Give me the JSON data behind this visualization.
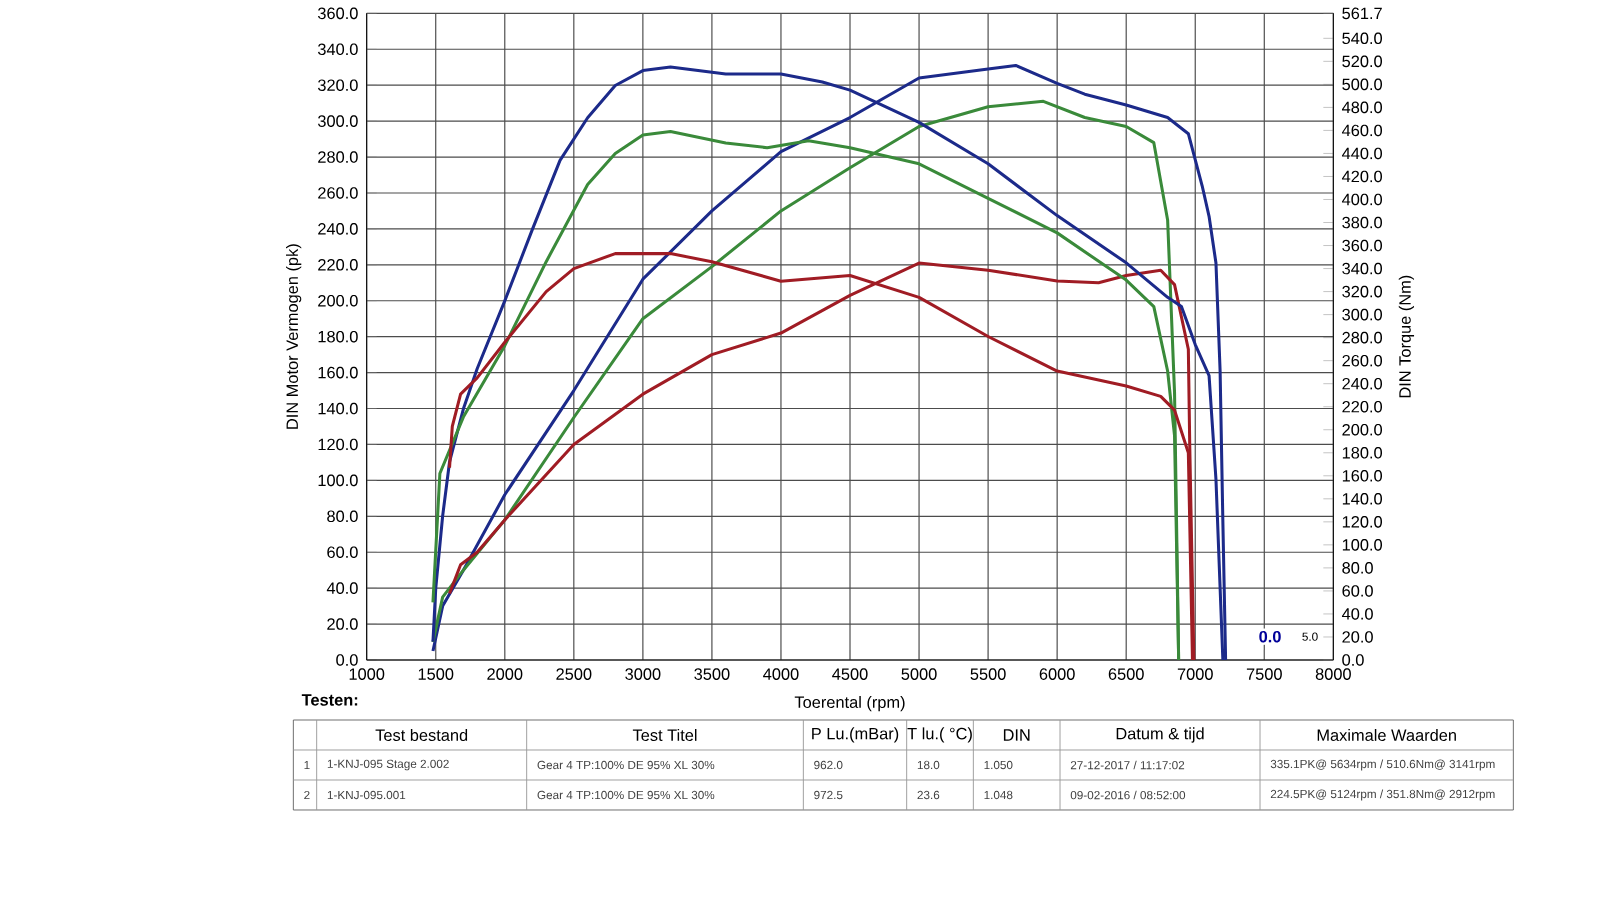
{
  "chart_data": {
    "type": "line",
    "xlabel": "Toerental (rpm)",
    "ylabel": "DIN Motor Vermogen (pk)",
    "y2label": "DIN Torque (Nm)",
    "xlim": [
      1000,
      8000
    ],
    "xticks": [
      1000,
      1500,
      2000,
      2500,
      3000,
      3500,
      4000,
      4500,
      5000,
      5500,
      6000,
      6500,
      7000,
      7500,
      8000
    ],
    "ylim": [
      0,
      360
    ],
    "yticks": [
      {
        "value": 0,
        "label": "0.0"
      },
      {
        "value": 20,
        "label": "20.0"
      },
      {
        "value": 40,
        "label": "40.0"
      },
      {
        "value": 60,
        "label": "60.0"
      },
      {
        "value": 80,
        "label": "80.0"
      },
      {
        "value": 100,
        "label": "100.0"
      },
      {
        "value": 120,
        "label": "120.0"
      },
      {
        "value": 140,
        "label": "140.0"
      },
      {
        "value": 160,
        "label": "160.0"
      },
      {
        "value": 180,
        "label": "180.0"
      },
      {
        "value": 200,
        "label": "200.0"
      },
      {
        "value": 220,
        "label": "220.0"
      },
      {
        "value": 240,
        "label": "240.0"
      },
      {
        "value": 260,
        "label": "260.0"
      },
      {
        "value": 280,
        "label": "280.0"
      },
      {
        "value": 300,
        "label": "300.0"
      },
      {
        "value": 320,
        "label": "320.0"
      },
      {
        "value": 340,
        "label": "340.0"
      },
      {
        "value": 360,
        "label": "360.0"
      }
    ],
    "y2lim": [
      0,
      561.7
    ],
    "y2ticks": [
      {
        "value": 0,
        "label": "0.0"
      },
      {
        "value": 20,
        "label": "20.0"
      },
      {
        "value": 40,
        "label": "40.0"
      },
      {
        "value": 60,
        "label": "60.0"
      },
      {
        "value": 80,
        "label": "80.0"
      },
      {
        "value": 100,
        "label": "100.0"
      },
      {
        "value": 120,
        "label": "120.0"
      },
      {
        "value": 140,
        "label": "140.0"
      },
      {
        "value": 160,
        "label": "160.0"
      },
      {
        "value": 180,
        "label": "180.0"
      },
      {
        "value": 200,
        "label": "200.0"
      },
      {
        "value": 220,
        "label": "220.0"
      },
      {
        "value": 240,
        "label": "240.0"
      },
      {
        "value": 260,
        "label": "260.0"
      },
      {
        "value": 280,
        "label": "280.0"
      },
      {
        "value": 300,
        "label": "300.0"
      },
      {
        "value": 320,
        "label": "320.0"
      },
      {
        "value": 340,
        "label": "340.0"
      },
      {
        "value": 360,
        "label": "360.0"
      },
      {
        "value": 380,
        "label": "380.0"
      },
      {
        "value": 400,
        "label": "400.0"
      },
      {
        "value": 420,
        "label": "420.0"
      },
      {
        "value": 440,
        "label": "440.0"
      },
      {
        "value": 460,
        "label": "460.0"
      },
      {
        "value": 480,
        "label": "480.0"
      },
      {
        "value": 500,
        "label": "500.0"
      },
      {
        "value": 520,
        "label": "520.0"
      },
      {
        "value": 540,
        "label": "540.0"
      },
      {
        "value": 561.7,
        "label": "561.7"
      }
    ],
    "grid": true,
    "marker": "none",
    "line_style": "solid",
    "series": [
      {
        "color": "#1c2a8a",
        "x": [
          1480,
          1550,
          1700,
          2000,
          2500,
          3000,
          3500,
          4000,
          4500,
          5000,
          5500,
          5700,
          6000,
          6200,
          6500,
          6800,
          6950,
          7050,
          7100,
          7150,
          7180,
          7200,
          7220
        ],
        "values": [
          5,
          30,
          50,
          92,
          150,
          212,
          250,
          283,
          302,
          324,
          329,
          331,
          321,
          315,
          309,
          302,
          293,
          264,
          247,
          221,
          161,
          77,
          0
        ]
      },
      {
        "color": "#1c2a8a",
        "axis": "y2",
        "x": [
          1480,
          1500,
          1550,
          1600,
          1700,
          1800,
          2000,
          2200,
          2400,
          2600,
          2800,
          3000,
          3200,
          3600,
          4000,
          4300,
          4500,
          5000,
          5500,
          6000,
          6500,
          6800,
          6900,
          7000,
          7100,
          7150,
          7200
        ],
        "values": [
          16,
          62,
          125,
          172,
          218,
          253,
          312,
          374,
          434,
          471,
          499,
          512,
          515,
          509,
          509,
          502,
          495,
          467,
          431,
          386,
          345,
          315,
          307,
          274,
          247,
          157,
          0
        ]
      },
      {
        "color": "#3a8a3a",
        "x": [
          1480,
          1550,
          1700,
          2000,
          2500,
          3000,
          3500,
          4000,
          4500,
          5000,
          5500,
          5900,
          6200,
          6500,
          6700,
          6800,
          6850,
          6880
        ],
        "values": [
          10,
          35,
          50,
          78,
          135,
          190,
          219,
          250,
          274,
          297,
          308,
          311,
          302,
          297,
          288,
          245,
          149,
          0
        ]
      },
      {
        "color": "#3a8a3a",
        "axis": "y2",
        "x": [
          1480,
          1530,
          1700,
          2000,
          2300,
          2600,
          2800,
          3000,
          3200,
          3600,
          3900,
          4200,
          4500,
          5000,
          5500,
          6000,
          6500,
          6700,
          6800,
          6850,
          6880
        ],
        "values": [
          50,
          162,
          211,
          273,
          346,
          413,
          440,
          456,
          459,
          449,
          445,
          451,
          445,
          431,
          401,
          371,
          330,
          307,
          251,
          195,
          0
        ]
      },
      {
        "color": "#a01c24",
        "x": [
          1600,
          1680,
          1800,
          2000,
          2500,
          3000,
          3500,
          4000,
          4500,
          5000,
          5500,
          6000,
          6300,
          6500,
          6750,
          6850,
          6950,
          6960,
          6990
        ],
        "values": [
          37,
          53,
          60,
          78,
          120,
          148,
          170,
          182,
          203,
          221,
          217,
          211,
          210,
          214,
          217,
          209,
          173,
          120,
          0
        ]
      },
      {
        "color": "#a01c24",
        "axis": "y2",
        "x": [
          1600,
          1620,
          1680,
          1800,
          2000,
          2300,
          2500,
          2800,
          3200,
          3500,
          4000,
          4500,
          5000,
          5500,
          6000,
          6500,
          6750,
          6850,
          6950,
          6980
        ],
        "values": [
          167,
          203,
          231,
          245,
          276,
          320,
          340,
          353,
          353,
          346,
          329,
          334,
          315,
          281,
          251,
          238,
          229,
          217,
          180,
          0
        ]
      }
    ],
    "annotations": [
      "Testen:",
      "Test bestand",
      "Test Titel",
      "P Lu.(mBar)",
      "T lu.( °C)",
      "DIN",
      "Datum & tijd",
      "Maximale Waarden",
      "1",
      "1-KNJ-095 Stage 2.002",
      "Gear 4 TP:100% DE 95% XL 30%",
      "962.0",
      "18.0",
      "1.050",
      "27-12-2017 / 11:17:02",
      "335.1PK@ 5634rpm / 510.6Nm@ 3141rpm",
      "2",
      "1-KNJ-095.001",
      "Gear 4 TP:100% DE 95% XL 30%",
      "972.5",
      "23.6",
      "1.048",
      "09-02-2016 / 08:52:00",
      "224.5PK@ 5124rpm / 351.8Nm@ 2912rpm",
      "0.0",
      "5.0"
    ]
  }
}
